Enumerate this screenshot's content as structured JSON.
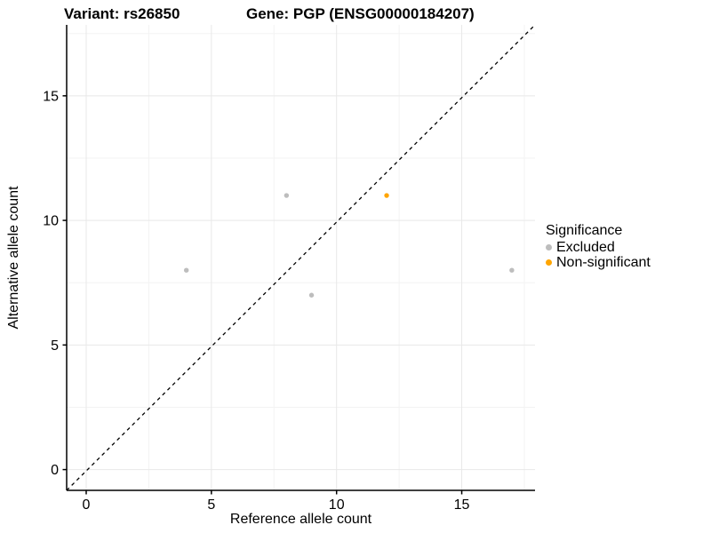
{
  "title": {
    "variant": "Variant: rs26850",
    "gene": "Gene: PGP (ENSG00000184207)"
  },
  "chart_data": {
    "type": "scatter",
    "xlabel": "Reference allele count",
    "ylabel": "Alternative allele count",
    "xlim": [
      -0.85,
      17.85
    ],
    "ylim": [
      -0.85,
      17.85
    ],
    "xticks": [
      0,
      5,
      10,
      15
    ],
    "yticks": [
      0,
      5,
      10,
      15
    ],
    "minor_ticks": [
      2.5,
      7.5,
      12.5,
      17.5
    ],
    "grid": true,
    "identity_line": {
      "slope": 1,
      "intercept": 0,
      "style": "dashed",
      "color": "#000000"
    },
    "legend": {
      "title": "Significance",
      "position": "right"
    },
    "series": [
      {
        "name": "Excluded",
        "color": "#bdbdbd",
        "points": [
          [
            4,
            8
          ],
          [
            8,
            11
          ],
          [
            9,
            7
          ],
          [
            17,
            8
          ]
        ]
      },
      {
        "name": "Non-significant",
        "color": "#ffa500",
        "points": [
          [
            12,
            11
          ]
        ]
      }
    ],
    "colors": {
      "major_grid": "#e8e8e8",
      "minor_grid": "#f3f3f3",
      "axis": "#000000",
      "text": "#000000"
    }
  }
}
